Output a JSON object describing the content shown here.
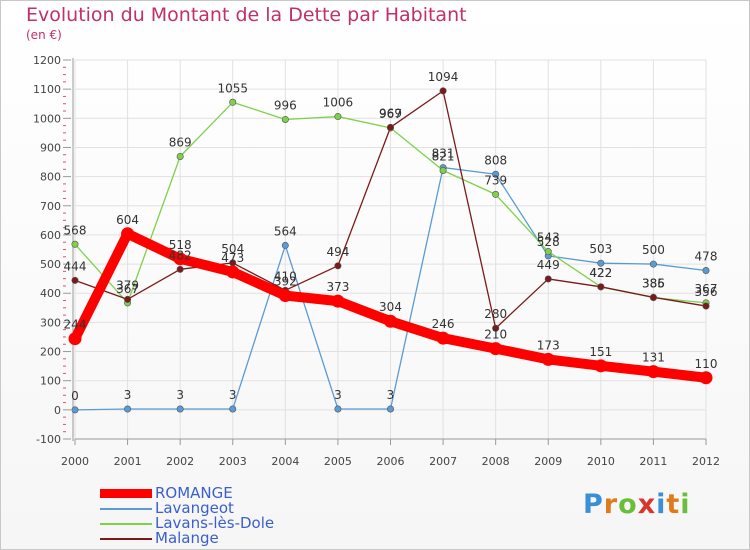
{
  "header": {
    "title": "Evolution du Montant de la Dette par Habitant",
    "subtitle": "(en €)"
  },
  "logo": {
    "text": "Proxiti"
  },
  "chart_data": {
    "type": "line",
    "title": "Evolution du Montant de la Dette par Habitant",
    "subtitle": "(en €)",
    "categories": [
      "2000",
      "2001",
      "2002",
      "2003",
      "2004",
      "2005",
      "2006",
      "2007",
      "2008",
      "2009",
      "2010",
      "2011",
      "2012"
    ],
    "ylim": [
      -100,
      1200
    ],
    "yticks": [
      -100,
      0,
      100,
      200,
      300,
      400,
      500,
      600,
      700,
      800,
      900,
      1000,
      1100,
      1200
    ],
    "grid": true,
    "legend_position": "bottom-left",
    "series": [
      {
        "name": "ROMANGE",
        "color": "#ff0000",
        "emphasis": true,
        "values": [
          244,
          604,
          518,
          473,
          392,
          373,
          304,
          246,
          210,
          173,
          151,
          131,
          110
        ]
      },
      {
        "name": "Lavangeot",
        "color": "#5b9bd5",
        "emphasis": false,
        "values": [
          0,
          3,
          3,
          3,
          564,
          3,
          3,
          831,
          808,
          528,
          503,
          500,
          478
        ]
      },
      {
        "name": "Lavans-lès-Dole",
        "color": "#7fd14a",
        "emphasis": false,
        "values": [
          568,
          367,
          869,
          1055,
          996,
          1006,
          967,
          821,
          739,
          543,
          422,
          385,
          367
        ]
      },
      {
        "name": "Malange",
        "color": "#7a1a1a",
        "emphasis": false,
        "values": [
          444,
          379,
          482,
          504,
          410,
          494,
          969,
          1094,
          280,
          449,
          422,
          386,
          356
        ]
      }
    ]
  }
}
